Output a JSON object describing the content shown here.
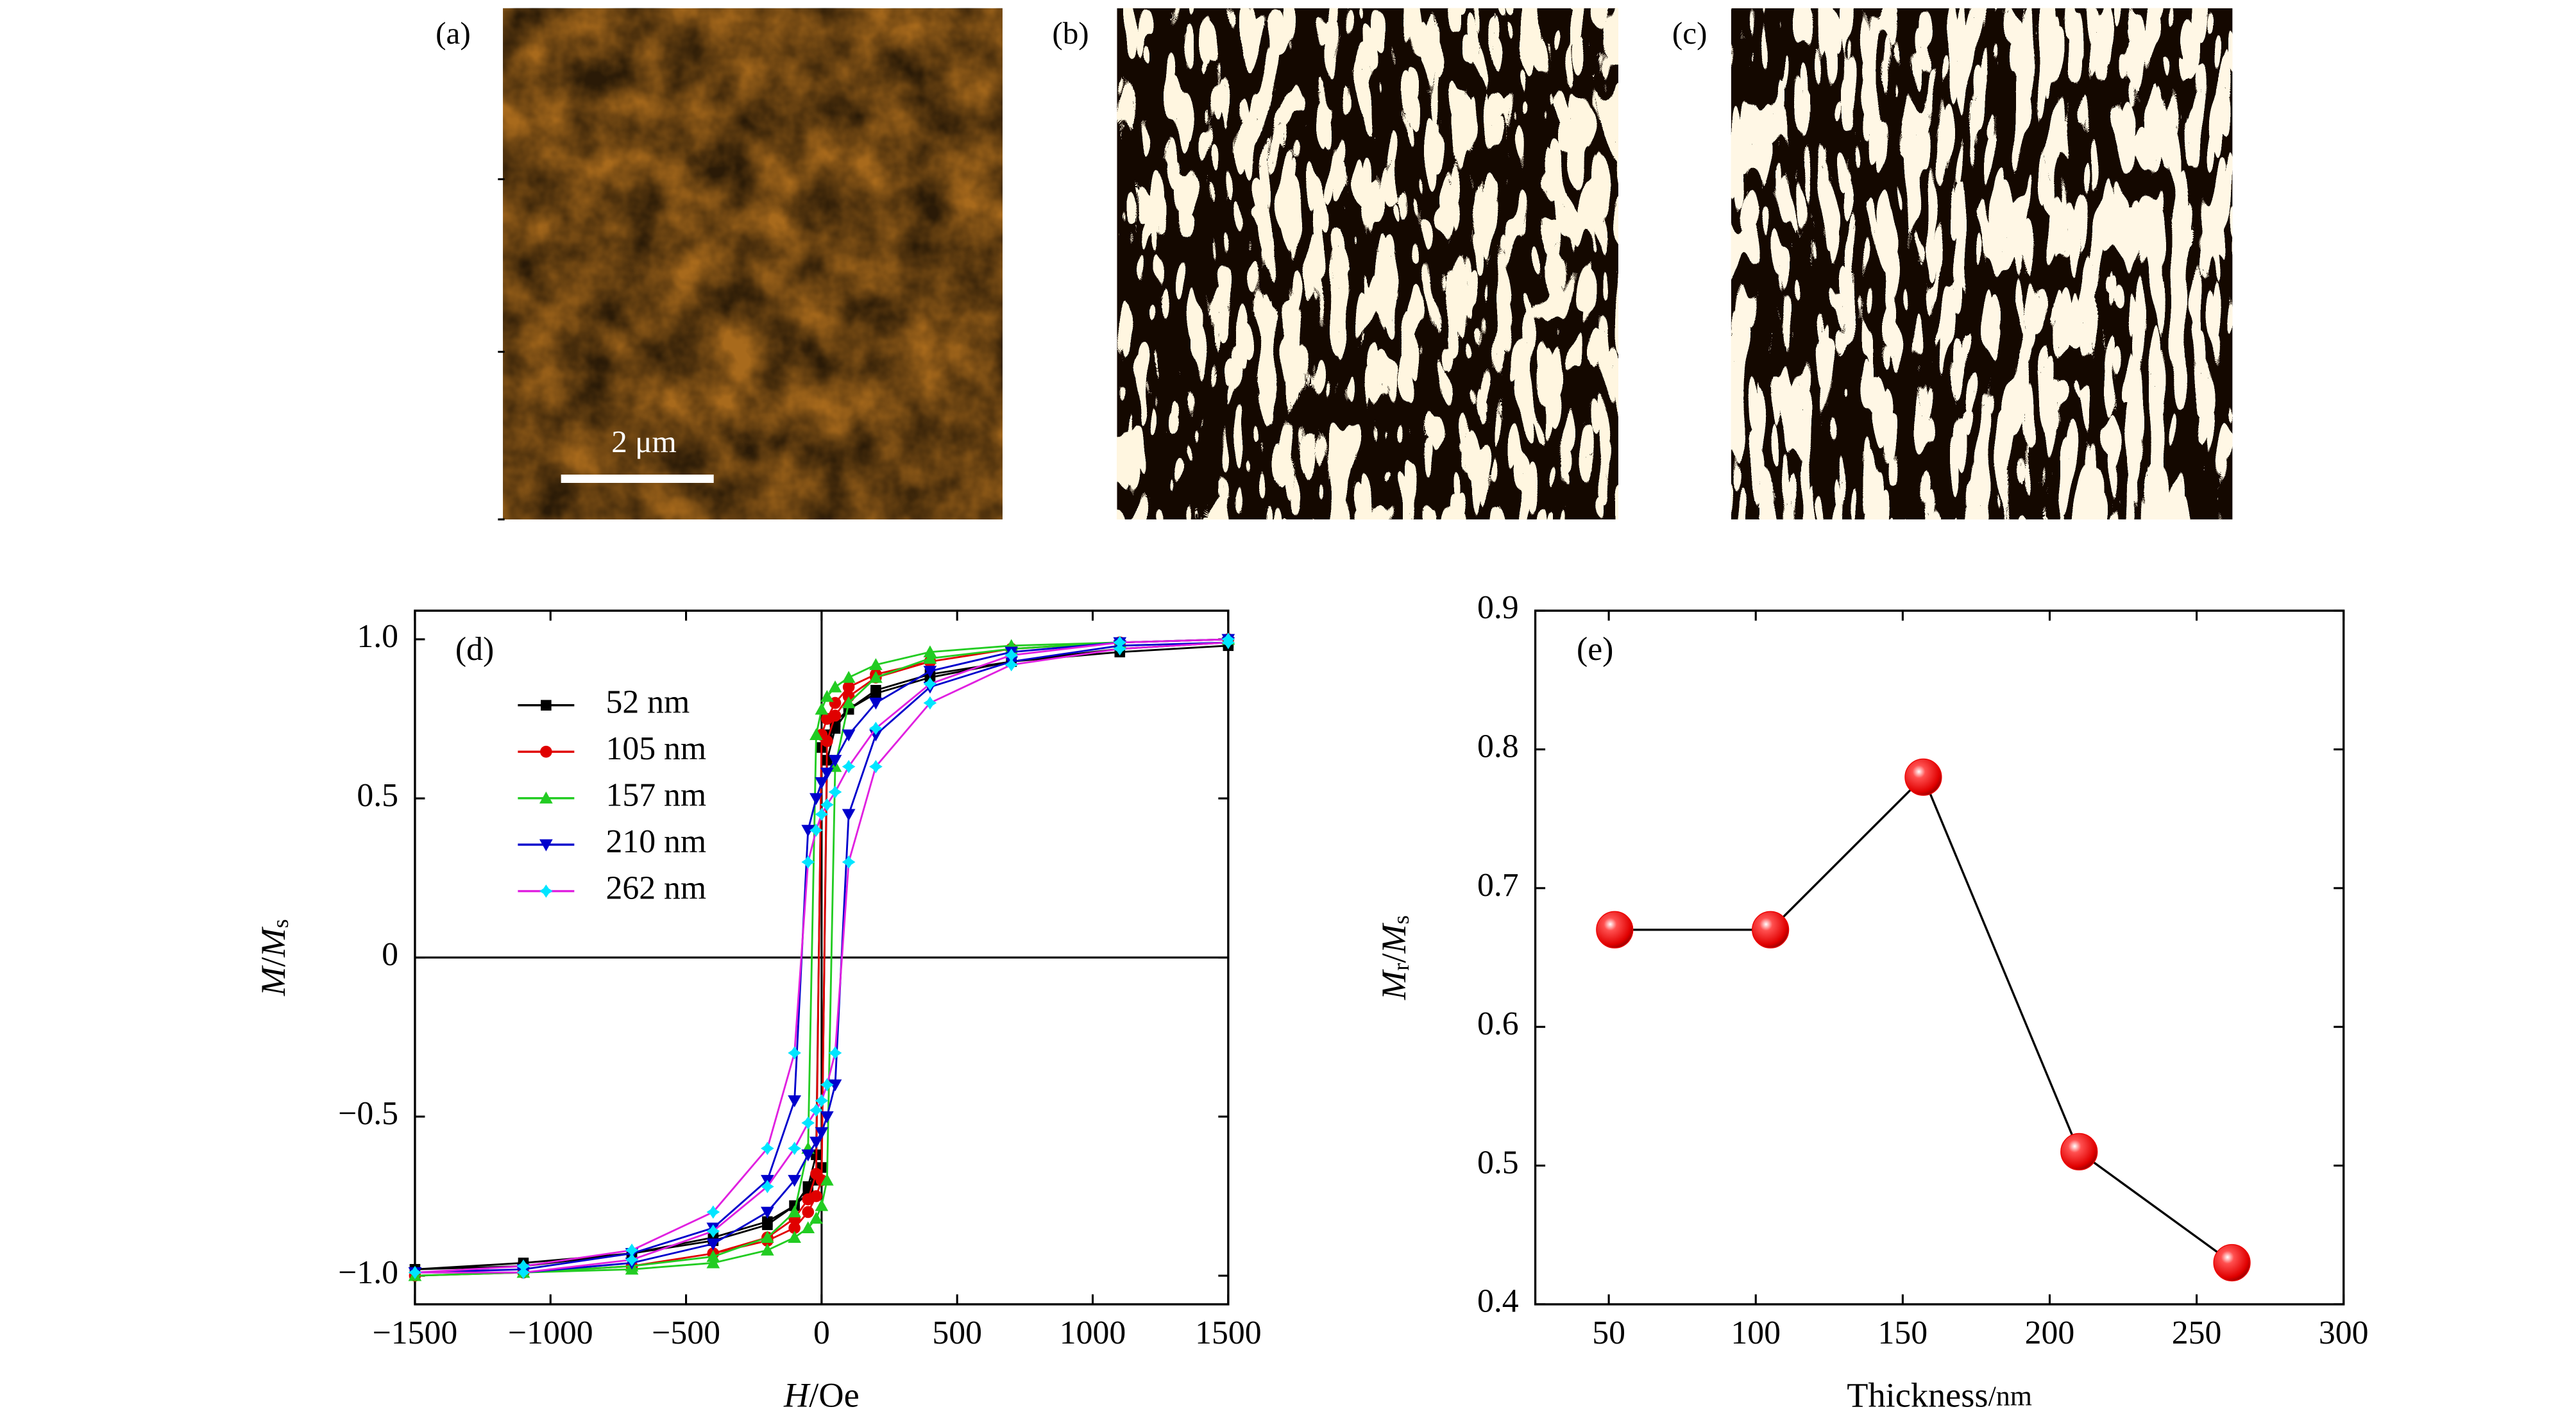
{
  "images": [
    {
      "label": "(a)",
      "scale_bar": "2 μm"
    },
    {
      "label": "(b)"
    },
    {
      "label": "(c)"
    }
  ],
  "chart_data": [
    {
      "type": "line",
      "panel_label": "(d)",
      "xlabel": [
        {
          "text": "H",
          "italic": true
        },
        {
          "text": "/Oe"
        }
      ],
      "ylabel": [
        {
          "text": "M",
          "italic": true
        },
        {
          "text": "/"
        },
        {
          "text": "M",
          "italic": true
        },
        {
          "text": "s",
          "sub": true
        }
      ],
      "x": [
        1500,
        1100,
        700,
        400,
        200,
        100,
        50,
        20,
        0,
        -20,
        -50,
        -100,
        -200,
        -400,
        -700,
        -1100,
        -1500,
        -1100,
        -700,
        -400,
        -200,
        -100,
        -50,
        -20,
        0,
        20,
        50,
        100,
        200,
        400,
        700,
        1100,
        1500
      ],
      "series": [
        {
          "name": "52 nm",
          "color": "#000000",
          "marker_color": "#000000",
          "marker": "square",
          "values": [
            0.99,
            0.97,
            0.93,
            0.88,
            0.83,
            0.78,
            0.74,
            0.7,
            0.66,
            -0.62,
            -0.72,
            -0.78,
            -0.84,
            -0.89,
            -0.93,
            -0.96,
            -0.98,
            -0.97,
            -0.93,
            -0.88,
            -0.83,
            -0.78,
            -0.74,
            -0.7,
            -0.66,
            0.62,
            0.72,
            0.78,
            0.84,
            0.89,
            0.93,
            0.96,
            0.98
          ]
        },
        {
          "name": "105 nm",
          "color": "#e00000",
          "marker_color": "#e00000",
          "marker": "circle",
          "values": [
            1.0,
            0.99,
            0.97,
            0.93,
            0.89,
            0.85,
            0.8,
            0.75,
            0.7,
            -0.68,
            -0.76,
            -0.82,
            -0.88,
            -0.93,
            -0.97,
            -0.99,
            -1.0,
            -0.99,
            -0.97,
            -0.93,
            -0.89,
            -0.85,
            -0.8,
            -0.75,
            -0.7,
            0.68,
            0.76,
            0.82,
            0.88,
            0.93,
            0.97,
            0.99,
            1.0
          ]
        },
        {
          "name": "157 nm",
          "color": "#22cc22",
          "marker_color": "#22cc22",
          "marker": "triangle-up",
          "values": [
            1.0,
            0.99,
            0.98,
            0.96,
            0.92,
            0.88,
            0.85,
            0.82,
            0.78,
            0.7,
            -0.6,
            -0.8,
            -0.88,
            -0.94,
            -0.97,
            -0.99,
            -1.0,
            -0.99,
            -0.98,
            -0.96,
            -0.92,
            -0.88,
            -0.85,
            -0.82,
            -0.78,
            -0.7,
            0.6,
            0.8,
            0.88,
            0.94,
            0.97,
            0.99,
            1.0
          ]
        },
        {
          "name": "210 nm",
          "color": "#0000cc",
          "marker_color": "#0000cc",
          "marker": "triangle-down",
          "values": [
            1.0,
            0.99,
            0.96,
            0.9,
            0.8,
            0.7,
            0.62,
            0.58,
            0.55,
            0.5,
            0.4,
            -0.45,
            -0.7,
            -0.85,
            -0.93,
            -0.98,
            -0.99,
            -0.99,
            -0.96,
            -0.9,
            -0.8,
            -0.7,
            -0.62,
            -0.58,
            -0.55,
            -0.5,
            -0.4,
            0.45,
            0.7,
            0.85,
            0.93,
            0.98,
            0.99
          ]
        },
        {
          "name": "262 nm",
          "color": "#e020e0",
          "marker_color": "#00e5ff",
          "marker": "star",
          "values": [
            1.0,
            0.99,
            0.95,
            0.86,
            0.72,
            0.6,
            0.52,
            0.48,
            0.45,
            0.4,
            0.3,
            -0.3,
            -0.6,
            -0.8,
            -0.92,
            -0.97,
            -0.99,
            -0.99,
            -0.95,
            -0.86,
            -0.72,
            -0.6,
            -0.52,
            -0.48,
            -0.45,
            -0.4,
            -0.3,
            0.3,
            0.6,
            0.8,
            0.92,
            0.97,
            0.99
          ]
        }
      ],
      "xlim": [
        -1500,
        1500
      ],
      "xticks": [
        {
          "value": -1500,
          "label": "−1500"
        },
        {
          "value": -1000,
          "label": "−1000"
        },
        {
          "value": -500,
          "label": "−500"
        },
        0,
        500,
        1000,
        1500
      ],
      "ylim": [
        -1.09,
        1.09
      ],
      "yticks": [
        {
          "value": -1.0,
          "label": "−1.0"
        },
        {
          "value": -0.5,
          "label": "−0.5"
        },
        0,
        0.5,
        {
          "value": 1.0,
          "label": "1.0"
        }
      ],
      "zero_lines": true,
      "legend": "upper left"
    },
    {
      "type": "scatter-line",
      "panel_label": "(e)",
      "xlabel": [
        {
          "text": "Thickness"
        },
        {
          "text": "/nm",
          "small": true
        }
      ],
      "ylabel": [
        {
          "text": "M",
          "italic": true
        },
        {
          "text": "r",
          "sub": true
        },
        {
          "text": "/"
        },
        {
          "text": "M",
          "italic": true
        },
        {
          "text": "s",
          "sub": true
        }
      ],
      "x": [
        52,
        105,
        157,
        210,
        262
      ],
      "values": [
        0.67,
        0.67,
        0.78,
        0.51,
        0.43
      ],
      "color": "#ee0000",
      "line_color": "#000000",
      "xlim": [
        25,
        300
      ],
      "xticks": [
        50,
        100,
        150,
        200,
        250,
        300
      ],
      "ylim": [
        0.4,
        0.9
      ],
      "yticks": [
        0.4,
        0.5,
        0.6,
        0.7,
        0.8,
        0.9
      ]
    }
  ]
}
